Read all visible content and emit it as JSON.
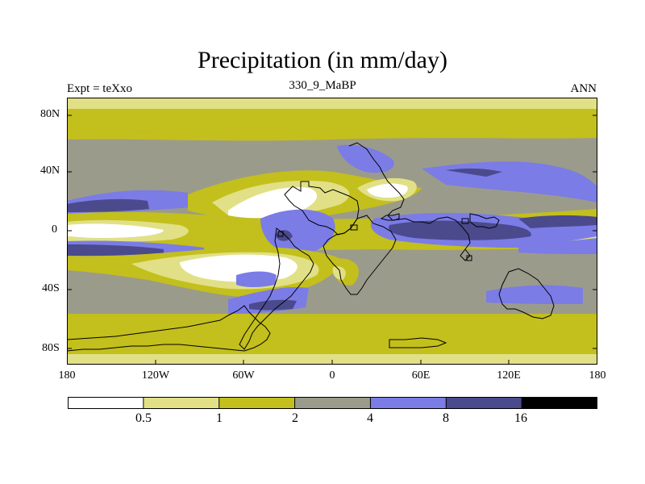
{
  "title": "Precipitation (in mm/day)",
  "left_label": "Expt = teXxo",
  "center_label": "330_9_MaBP",
  "right_label": "ANN",
  "y_ticks": [
    "80N",
    "40N",
    "0",
    "40S",
    "80S"
  ],
  "x_ticks": [
    "180",
    "120W",
    "60W",
    "0",
    "60E",
    "120E",
    "180"
  ],
  "colorbar": {
    "labels": [
      "0.5",
      "1",
      "2",
      "4",
      "8",
      "16"
    ],
    "colors": [
      "#ffffff",
      "#e1e086",
      "#c3bf1c",
      "#9b9b8b",
      "#7b7ce6",
      "#4a4a8d",
      "#000000"
    ]
  }
}
